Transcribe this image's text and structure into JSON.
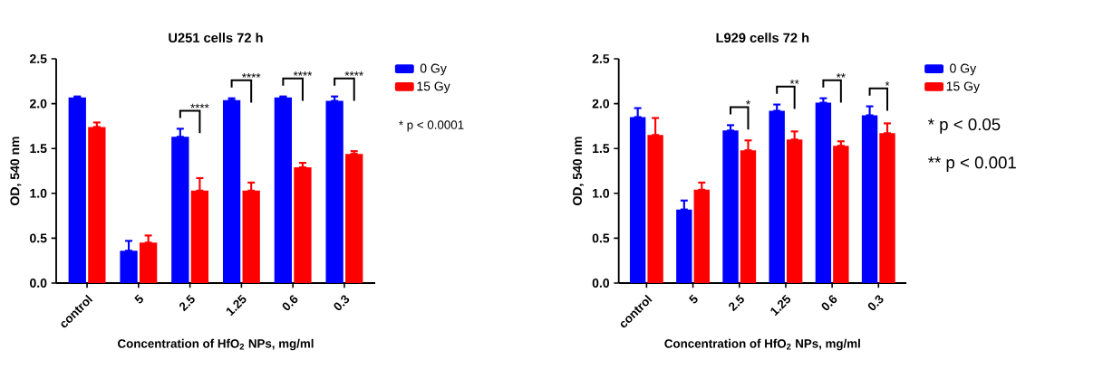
{
  "chart_data": [
    {
      "type": "bar",
      "title": "U251 cells 72 h",
      "xlabel": "Concentration of HfO$_{2}$ NPs, mg/ml",
      "ylabel": "OD, 540 nm",
      "categories": [
        "control",
        "5",
        "2.5",
        "1.25",
        "0.6",
        "0.3"
      ],
      "series": [
        {
          "name": "0 Gy",
          "color": "#0000ff",
          "values": [
            2.07,
            0.36,
            1.63,
            2.04,
            2.07,
            2.03
          ],
          "errors": [
            [
              2.07,
              2.08
            ],
            [
              0.36,
              0.47
            ],
            [
              1.63,
              1.72
            ],
            [
              2.04,
              2.06
            ],
            [
              2.07,
              2.08
            ],
            [
              2.03,
              2.08
            ]
          ]
        },
        {
          "name": "15 Gy",
          "color": "#ff0000",
          "values": [
            1.74,
            0.45,
            1.03,
            1.03,
            1.29,
            1.44
          ],
          "errors": [
            [
              1.74,
              1.79
            ],
            [
              0.45,
              0.53
            ],
            [
              1.03,
              1.17
            ],
            [
              1.03,
              1.12
            ],
            [
              1.29,
              1.34
            ],
            [
              1.44,
              1.47
            ]
          ]
        }
      ],
      "ylim": [
        0,
        2.5
      ],
      "yticks": [
        {
          "value": 0,
          "label": "0.0"
        },
        {
          "value": 0.5,
          "label": "0.5"
        },
        {
          "value": 1,
          "label": "1.0"
        },
        {
          "value": 1.5,
          "label": "1.5"
        },
        {
          "value": 2,
          "label": "2.0"
        },
        {
          "value": 2.5,
          "label": "2.5"
        }
      ],
      "legend": "right",
      "annotations": [
        "****",
        "****",
        "****",
        "****",
        "* p < 0.0001"
      ]
    },
    {
      "type": "bar",
      "title": "L929 cells 72 h",
      "xlabel": "Concentration of HfO$_{2}$ NPs, mg/ml",
      "ylabel": "OD, 540 nm",
      "categories": [
        "control",
        "5",
        "2.5",
        "1.25",
        "0.6",
        "0.3"
      ],
      "series": [
        {
          "name": "0 Gy",
          "color": "#0000ff",
          "values": [
            1.85,
            0.82,
            1.7,
            1.92,
            2.01,
            1.87
          ],
          "errors": [
            [
              1.85,
              1.95
            ],
            [
              0.82,
              0.92
            ],
            [
              1.7,
              1.76
            ],
            [
              1.92,
              1.99
            ],
            [
              2.01,
              2.06
            ],
            [
              1.87,
              1.97
            ]
          ]
        },
        {
          "name": "15 Gy",
          "color": "#ff0000",
          "values": [
            1.65,
            1.04,
            1.48,
            1.6,
            1.53,
            1.67
          ],
          "errors": [
            [
              1.65,
              1.84
            ],
            [
              1.04,
              1.12
            ],
            [
              1.48,
              1.59
            ],
            [
              1.6,
              1.69
            ],
            [
              1.53,
              1.58
            ],
            [
              1.67,
              1.78
            ]
          ]
        }
      ],
      "ylim": [
        0,
        2.5
      ],
      "yticks": [
        {
          "value": 0,
          "label": "0.0"
        },
        {
          "value": 0.5,
          "label": "0.5"
        },
        {
          "value": 1,
          "label": "1.0"
        },
        {
          "value": 1.5,
          "label": "1.5"
        },
        {
          "value": 2,
          "label": "2.0"
        },
        {
          "value": 2.5,
          "label": "2.5"
        }
      ],
      "legend": "right",
      "annotations": [
        "*",
        "**",
        "**",
        "*",
        "* p < 0.05",
        "** p < 0.001"
      ]
    }
  ]
}
